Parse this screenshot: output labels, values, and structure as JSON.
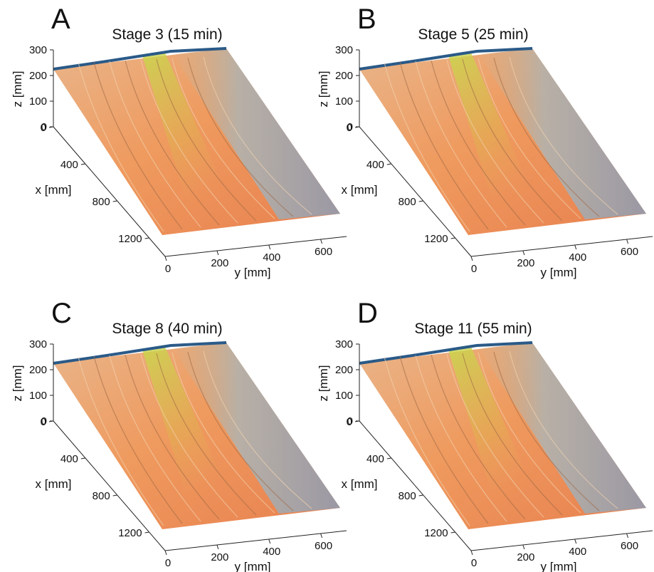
{
  "chart_data": [
    {
      "type": "surface",
      "panel": "A",
      "title": "Stage 3 (15 min)",
      "xlabel": "x [mm]",
      "ylabel": "y [mm]",
      "zlabel": "z [mm]",
      "xlim": [
        0,
        1400
      ],
      "ylim": [
        0,
        700
      ],
      "zlim": [
        0,
        300
      ],
      "xticks": [
        0,
        400,
        800,
        1200
      ],
      "yticks": [
        0,
        200,
        400,
        600
      ],
      "zticks": [
        0,
        100,
        200,
        300
      ]
    },
    {
      "type": "surface",
      "panel": "B",
      "title": "Stage 5 (25 min)",
      "xlabel": "x [mm]",
      "ylabel": "y [mm]",
      "zlabel": "z [mm]",
      "xlim": [
        0,
        1400
      ],
      "ylim": [
        0,
        700
      ],
      "zlim": [
        0,
        300
      ],
      "xticks": [
        0,
        400,
        800,
        1200
      ],
      "yticks": [
        0,
        200,
        400,
        600
      ],
      "zticks": [
        0,
        100,
        200,
        300
      ]
    },
    {
      "type": "surface",
      "panel": "C",
      "title": "Stage 8 (40 min)",
      "xlabel": "x [mm]",
      "ylabel": "y [mm]",
      "zlabel": "z [mm]",
      "xlim": [
        0,
        1400
      ],
      "ylim": [
        0,
        700
      ],
      "zlim": [
        0,
        300
      ],
      "xticks": [
        0,
        400,
        800,
        1200
      ],
      "yticks": [
        0,
        200,
        400,
        600
      ],
      "zticks": [
        0,
        100,
        200,
        300
      ]
    },
    {
      "type": "surface",
      "panel": "D",
      "title": "Stage 11 (55 min)",
      "xlabel": "x [mm]",
      "ylabel": "y [mm]",
      "zlabel": "z [mm]",
      "xlim": [
        0,
        1400
      ],
      "ylim": [
        0,
        700
      ],
      "zlim": [
        0,
        300
      ],
      "xticks": [
        0,
        400,
        800,
        1200
      ],
      "yticks": [
        0,
        200,
        400,
        600
      ],
      "zticks": [
        0,
        100,
        200,
        300
      ]
    }
  ]
}
